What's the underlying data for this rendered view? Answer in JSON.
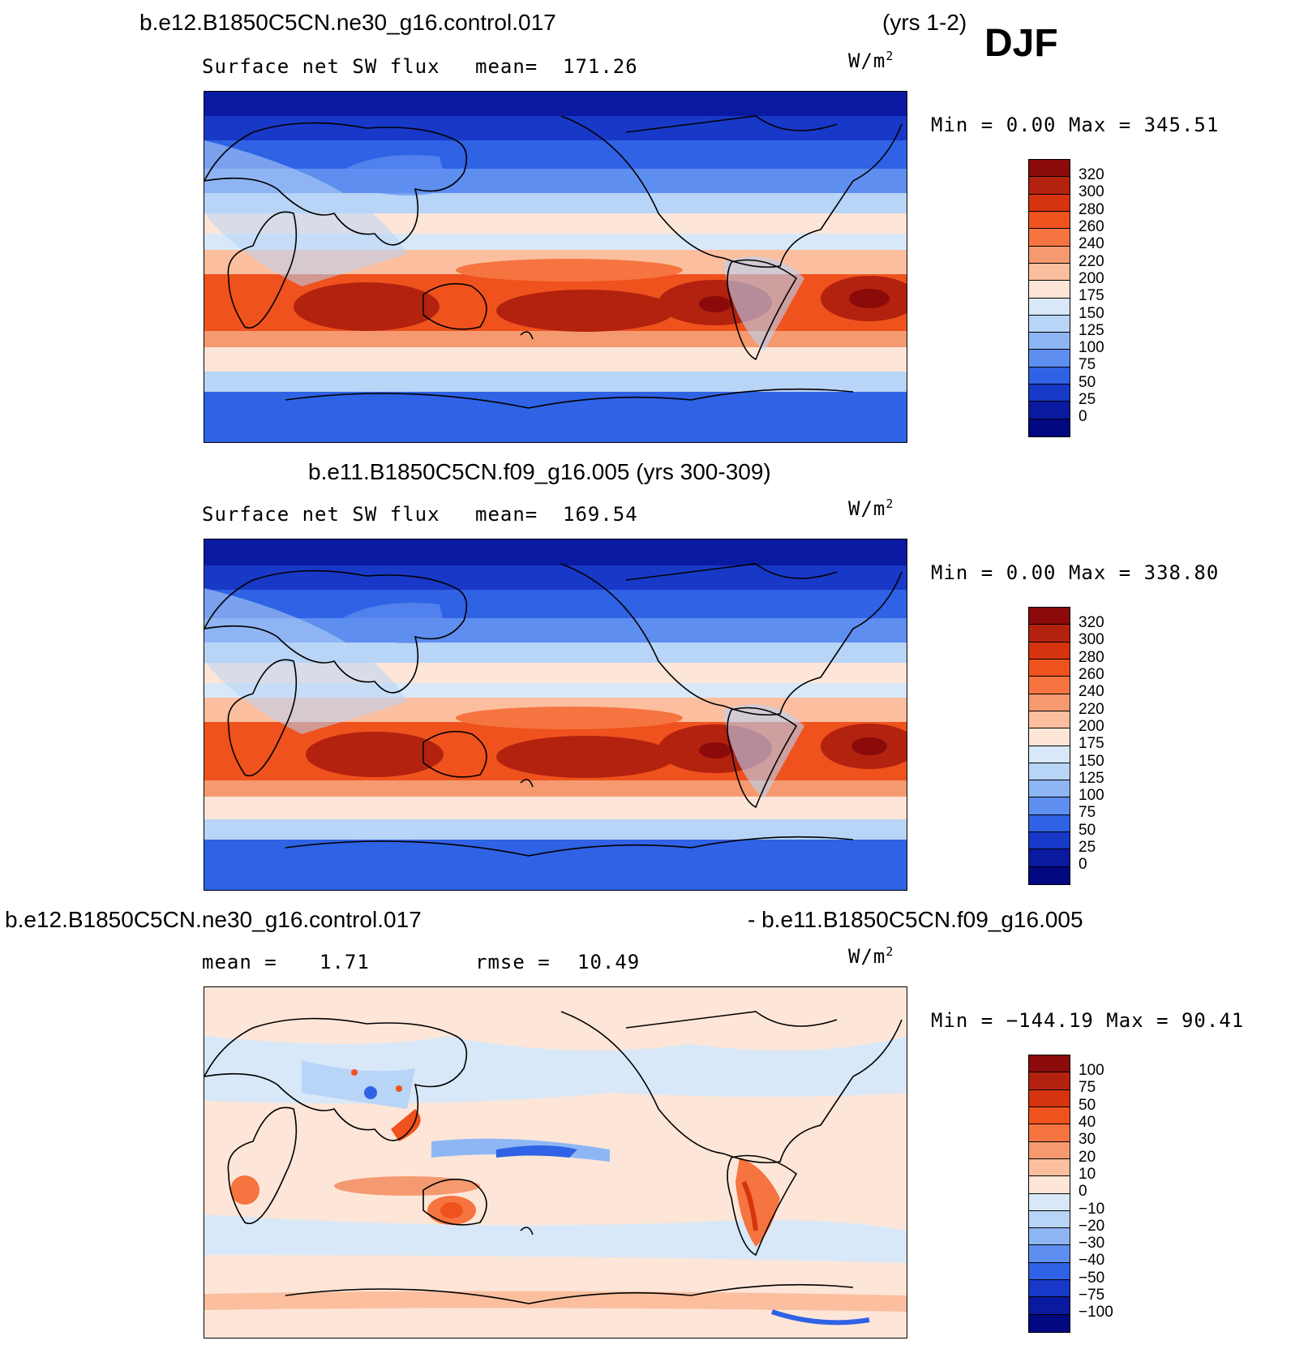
{
  "header": {
    "case1_title": "b.e12.B1850C5CN.ne30_g16.control.017",
    "case1_years": "(yrs 1-2)",
    "season": "DJF"
  },
  "panels": [
    {
      "title": "",
      "variable": "Surface net SW flux",
      "stat_left": "mean=",
      "stat_left_value": "171.26",
      "stat_right": "",
      "stat_right_value": "",
      "units": "W/m",
      "units_sup": "2",
      "minmax": "Min =    0.00 Max = 345.51",
      "colorbar": {
        "labels": [
          "320",
          "300",
          "280",
          "260",
          "240",
          "220",
          "200",
          "175",
          "150",
          "125",
          "100",
          "75",
          "50",
          "25",
          "0"
        ],
        "colors": [
          "#8b0a0a",
          "#b3220f",
          "#d6340f",
          "#f0521d",
          "#f57440",
          "#f59a70",
          "#fbbfa0",
          "#fde6d8",
          "#d8e8f8",
          "#b8d4f6",
          "#8eb6f4",
          "#5e8ef0",
          "#2f62e4",
          "#1838c8",
          "#0a1aa0",
          "#020880"
        ]
      }
    },
    {
      "title": "b.e11.B1850C5CN.f09_g16.005 (yrs 300-309)",
      "variable": "Surface net SW flux",
      "stat_left": "mean=",
      "stat_left_value": "169.54",
      "stat_right": "",
      "stat_right_value": "",
      "units": "W/m",
      "units_sup": "2",
      "minmax": "Min =    0.00 Max = 338.80",
      "colorbar": {
        "labels": [
          "320",
          "300",
          "280",
          "260",
          "240",
          "220",
          "200",
          "175",
          "150",
          "125",
          "100",
          "75",
          "50",
          "25",
          "0"
        ],
        "colors": [
          "#8b0a0a",
          "#b3220f",
          "#d6340f",
          "#f0521d",
          "#f57440",
          "#f59a70",
          "#fbbfa0",
          "#fde6d8",
          "#d8e8f8",
          "#b8d4f6",
          "#8eb6f4",
          "#5e8ef0",
          "#2f62e4",
          "#1838c8",
          "#0a1aa0",
          "#020880"
        ]
      }
    },
    {
      "title_left": "b.e12.B1850C5CN.ne30_g16.control.017",
      "title_right": "- b.e11.B1850C5CN.f09_g16.005",
      "stat_left": "mean =",
      "stat_left_value": "1.71",
      "stat_right": "rmse =",
      "stat_right_value": "10.49",
      "units": "W/m",
      "units_sup": "2",
      "minmax": "Min = −144.19 Max =  90.41",
      "colorbar": {
        "labels": [
          "100",
          "75",
          "50",
          "40",
          "30",
          "20",
          "10",
          "0",
          "−10",
          "−20",
          "−30",
          "−40",
          "−50",
          "−75",
          "−100"
        ],
        "colors": [
          "#8b0a0a",
          "#b3220f",
          "#d6340f",
          "#f0521d",
          "#f57440",
          "#f59a70",
          "#fbbfa0",
          "#fde6d8",
          "#d8e8f8",
          "#b8d4f6",
          "#8eb6f4",
          "#5e8ef0",
          "#2f62e4",
          "#1838c8",
          "#0a1aa0",
          "#020880"
        ]
      }
    }
  ],
  "colors": {
    "deep_blue": "#0a1aa0",
    "blue": "#2f62e4",
    "light_blue": "#b8d4f6",
    "pale": "#fde6d8",
    "peach": "#fbbfa0",
    "orange": "#f0521d",
    "red": "#b3220f",
    "coast": "#000000"
  }
}
